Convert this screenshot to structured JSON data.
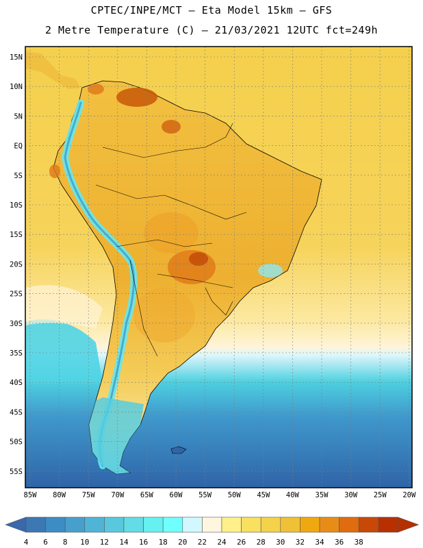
{
  "header": {
    "line1": "CPTEC/INPE/MCT –  Eta Model 15km – GFS",
    "line2": "2 Metre Temperature (C) – 21/03/2021 12UTC fct=249h"
  },
  "axes": {
    "lat_labels": [
      "15N",
      "10N",
      "5N",
      "EQ",
      "5S",
      "10S",
      "15S",
      "20S",
      "25S",
      "30S",
      "35S",
      "40S",
      "45S",
      "50S",
      "55S"
    ],
    "lon_labels": [
      "85W",
      "80W",
      "75W",
      "70W",
      "65W",
      "60W",
      "55W",
      "50W",
      "45W",
      "40W",
      "35W",
      "30W",
      "25W",
      "20W"
    ]
  },
  "colorbar": {
    "ticks": [
      "4",
      "6",
      "8",
      "10",
      "12",
      "14",
      "16",
      "18",
      "20",
      "22",
      "24",
      "26",
      "28",
      "30",
      "32",
      "34",
      "36",
      "38"
    ],
    "colors": [
      "#3c78b4",
      "#3d8cc4",
      "#47a0cc",
      "#50b4d6",
      "#59c8de",
      "#62dce6",
      "#66f0f0",
      "#70ffff",
      "#d2f8ff",
      "#fff6e0",
      "#fff08c",
      "#f8e060",
      "#f4d24a",
      "#f0c036",
      "#f0a810",
      "#e88c18",
      "#e06c10",
      "#c84808",
      "#b83000"
    ],
    "under_color": "#3a68ac",
    "over_color": "#b43000"
  },
  "legend_palette": {
    "ocean_north": "#f5d04d",
    "ocean_mid": "#fce8a0",
    "ocean_cool": "#4ed0e0",
    "ocean_cold": "#3f98cc",
    "ocean_polar": "#2f64a8",
    "land_hot": "#e89418",
    "land_warm": "#f2c040",
    "andes": "#66e8f0"
  }
}
